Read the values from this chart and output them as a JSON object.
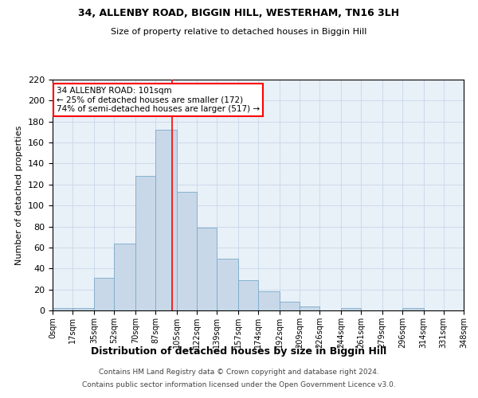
{
  "title": "34, ALLENBY ROAD, BIGGIN HILL, WESTERHAM, TN16 3LH",
  "subtitle": "Size of property relative to detached houses in Biggin Hill",
  "xlabel": "Distribution of detached houses by size in Biggin Hill",
  "ylabel": "Number of detached properties",
  "bin_labels": [
    "0sqm",
    "17sqm",
    "35sqm",
    "52sqm",
    "70sqm",
    "87sqm",
    "105sqm",
    "122sqm",
    "139sqm",
    "157sqm",
    "174sqm",
    "192sqm",
    "209sqm",
    "226sqm",
    "244sqm",
    "261sqm",
    "279sqm",
    "296sqm",
    "314sqm",
    "331sqm",
    "348sqm"
  ],
  "bin_edges": [
    0,
    17,
    35,
    52,
    70,
    87,
    105,
    122,
    139,
    157,
    174,
    192,
    209,
    226,
    244,
    261,
    279,
    296,
    314,
    331,
    348
  ],
  "bar_heights": [
    2,
    2,
    31,
    64,
    128,
    172,
    113,
    79,
    49,
    29,
    18,
    8,
    4,
    0,
    2,
    0,
    0,
    2,
    0,
    0
  ],
  "bar_color": "#c8d8e8",
  "bar_edge_color": "#7aaaca",
  "grid_color": "#c8d8e8",
  "bg_color": "#e8f0f8",
  "vline_x": 101,
  "vline_color": "red",
  "annotation_line1": "34 ALLENBY ROAD: 101sqm",
  "annotation_line2": "← 25% of detached houses are smaller (172)",
  "annotation_line3": "74% of semi-detached houses are larger (517) →",
  "annotation_box_color": "white",
  "annotation_box_edge_color": "red",
  "ylim": [
    0,
    220
  ],
  "yticks": [
    0,
    20,
    40,
    60,
    80,
    100,
    120,
    140,
    160,
    180,
    200,
    220
  ],
  "footer_line1": "Contains HM Land Registry data © Crown copyright and database right 2024.",
  "footer_line2": "Contains public sector information licensed under the Open Government Licence v3.0."
}
